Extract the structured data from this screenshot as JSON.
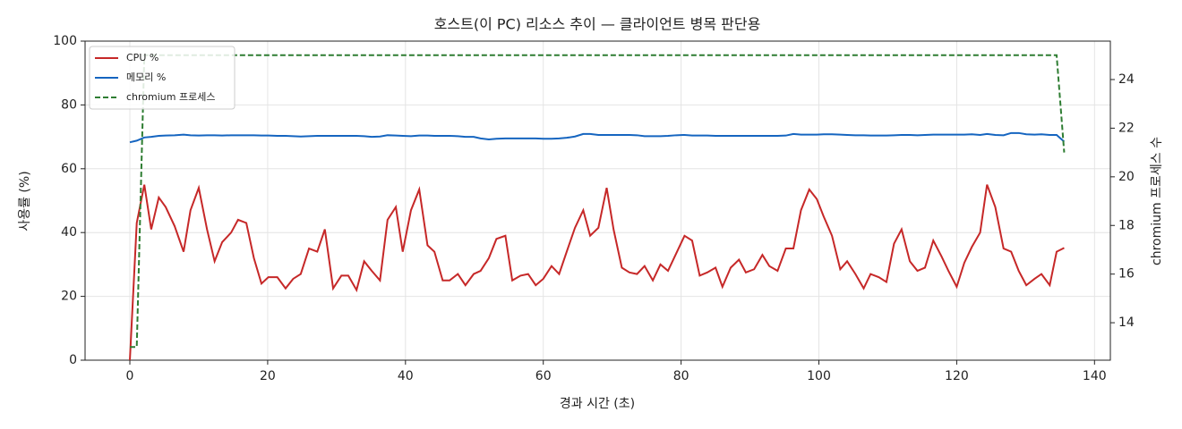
{
  "chart_data": {
    "type": "line",
    "title": "호스트(이 PC) 리소스 추이 — 클라이언트 병목 판단용",
    "xlabel": "경과 시간 (초)",
    "ylabel": "사용률 (%)",
    "y2label": "chromium 프로세스 수",
    "xlim": [
      -6.5,
      142.3
    ],
    "xticks": [
      0,
      20,
      40,
      60,
      80,
      100,
      120,
      140
    ],
    "ylim": [
      0,
      100
    ],
    "yticks": [
      0,
      20,
      40,
      60,
      80,
      100
    ],
    "y2lim": [
      12.46,
      25.58
    ],
    "y2ticks": [
      14,
      16,
      18,
      20,
      22,
      24
    ],
    "grid": true,
    "legend": "upper left",
    "x": [
      0,
      1,
      2.1,
      3.1,
      4.2,
      5.2,
      6.5,
      7.8,
      8.8,
      10,
      11.2,
      12.3,
      13.4,
      14.7,
      15.7,
      16.9,
      18,
      19.1,
      20.1,
      21.4,
      22.6,
      23.7,
      24.8,
      26,
      27.2,
      28.3,
      29.5,
      30.7,
      31.7,
      32.9,
      34,
      35.1,
      36.3,
      37.4,
      38.6,
      39.6,
      40.8,
      42,
      43.2,
      44.2,
      45.4,
      46.4,
      47.6,
      48.7,
      49.9,
      50.9,
      52.1,
      53.2,
      54.5,
      55.5,
      56.7,
      57.8,
      58.9,
      60,
      61.2,
      62.3,
      63.4,
      64.6,
      65.8,
      66.8,
      68,
      69.2,
      70.2,
      71.4,
      72.5,
      73.6,
      74.7,
      75.9,
      77,
      78.1,
      79.3,
      80.5,
      81.6,
      82.7,
      83.8,
      85,
      86,
      87.2,
      88.4,
      89.4,
      90.6,
      91.8,
      92.8,
      94,
      95.2,
      96.3,
      97.4,
      98.6,
      99.7,
      100.7,
      101.9,
      103.1,
      104.1,
      105.3,
      106.5,
      107.5,
      108.7,
      109.8,
      110.9,
      112,
      113.2,
      114.3,
      115.4,
      116.6,
      117.8,
      118.8,
      120,
      121.1,
      122.2,
      123.4,
      124.4,
      125.6,
      126.8,
      127.9,
      129,
      130.1,
      131.3,
      132.3,
      133.5,
      134.5,
      135.6
    ],
    "series": [
      {
        "name": "CPU %",
        "color": "#c62828",
        "style": "solid",
        "values": [
          0,
          43,
          55,
          41,
          51,
          48,
          42,
          34,
          47,
          54,
          41,
          31,
          37,
          40,
          44,
          43,
          32,
          24,
          26,
          26,
          22.5,
          25.5,
          27,
          35,
          34,
          41,
          22.5,
          26.5,
          26.5,
          22,
          31,
          28,
          25,
          44,
          48,
          34,
          47,
          53.5,
          36,
          34,
          25,
          25,
          27,
          23.5,
          27,
          28,
          32,
          38,
          39,
          25,
          26.5,
          27,
          23.5,
          25.5,
          29.5,
          27,
          34,
          41.5,
          47,
          39,
          41.5,
          54,
          41,
          29,
          27.5,
          27,
          29.5,
          25,
          30,
          28,
          33.5,
          39,
          37.5,
          26.5,
          27.5,
          29,
          23,
          29,
          31.5,
          27.5,
          28.5,
          33,
          29.5,
          28,
          35,
          35,
          47,
          53.5,
          50.5,
          45,
          39,
          28.5,
          31,
          27,
          22.5,
          27,
          26,
          24.5,
          36.5,
          41,
          31,
          28,
          29,
          37.5,
          32.5,
          28,
          23,
          30.5,
          35.5,
          40,
          55,
          48,
          35,
          34,
          28,
          23.5,
          25.5,
          27,
          23.5,
          34,
          35.2
        ]
      },
      {
        "name": "메모리 %",
        "color": "#1565c0",
        "style": "solid",
        "values": [
          68.3,
          68.8,
          69.8,
          70,
          70.3,
          70.4,
          70.5,
          70.7,
          70.5,
          70.4,
          70.5,
          70.5,
          70.4,
          70.5,
          70.5,
          70.5,
          70.5,
          70.4,
          70.4,
          70.3,
          70.3,
          70.2,
          70.1,
          70.2,
          70.3,
          70.3,
          70.3,
          70.3,
          70.3,
          70.3,
          70.2,
          70,
          70.1,
          70.5,
          70.4,
          70.3,
          70.2,
          70.4,
          70.4,
          70.3,
          70.3,
          70.3,
          70.2,
          70,
          70,
          69.5,
          69.2,
          69.4,
          69.5,
          69.5,
          69.5,
          69.5,
          69.5,
          69.4,
          69.4,
          69.5,
          69.7,
          70.1,
          70.9,
          70.9,
          70.6,
          70.6,
          70.6,
          70.6,
          70.6,
          70.5,
          70.2,
          70.2,
          70.2,
          70.3,
          70.5,
          70.6,
          70.4,
          70.4,
          70.4,
          70.3,
          70.3,
          70.3,
          70.3,
          70.3,
          70.3,
          70.3,
          70.3,
          70.3,
          70.4,
          70.9,
          70.7,
          70.7,
          70.7,
          70.8,
          70.8,
          70.7,
          70.6,
          70.5,
          70.5,
          70.4,
          70.4,
          70.4,
          70.5,
          70.6,
          70.6,
          70.5,
          70.6,
          70.7,
          70.7,
          70.7,
          70.7,
          70.7,
          70.8,
          70.6,
          70.9,
          70.6,
          70.5,
          71.2,
          71.2,
          70.8,
          70.7,
          70.8,
          70.6,
          70.6,
          68.5
        ]
      },
      {
        "name": "chromium 프로세스",
        "color": "#2e7d32",
        "style": "dashed",
        "axis": "y2",
        "values": [
          13,
          13,
          25,
          25,
          25,
          25,
          25,
          25,
          25,
          25,
          25,
          25,
          25,
          25,
          25,
          25,
          25,
          25,
          25,
          25,
          25,
          25,
          25,
          25,
          25,
          25,
          25,
          25,
          25,
          25,
          25,
          25,
          25,
          25,
          25,
          25,
          25,
          25,
          25,
          25,
          25,
          25,
          25,
          25,
          25,
          25,
          25,
          25,
          25,
          25,
          25,
          25,
          25,
          25,
          25,
          25,
          25,
          25,
          25,
          25,
          25,
          25,
          25,
          25,
          25,
          25,
          25,
          25,
          25,
          25,
          25,
          25,
          25,
          25,
          25,
          25,
          25,
          25,
          25,
          25,
          25,
          25,
          25,
          25,
          25,
          25,
          25,
          25,
          25,
          25,
          25,
          25,
          25,
          25,
          25,
          25,
          25,
          25,
          25,
          25,
          25,
          25,
          25,
          25,
          25,
          25,
          25,
          25,
          25,
          25,
          25,
          25,
          25,
          25,
          25,
          25,
          25,
          25,
          25,
          25,
          21
        ]
      }
    ]
  }
}
